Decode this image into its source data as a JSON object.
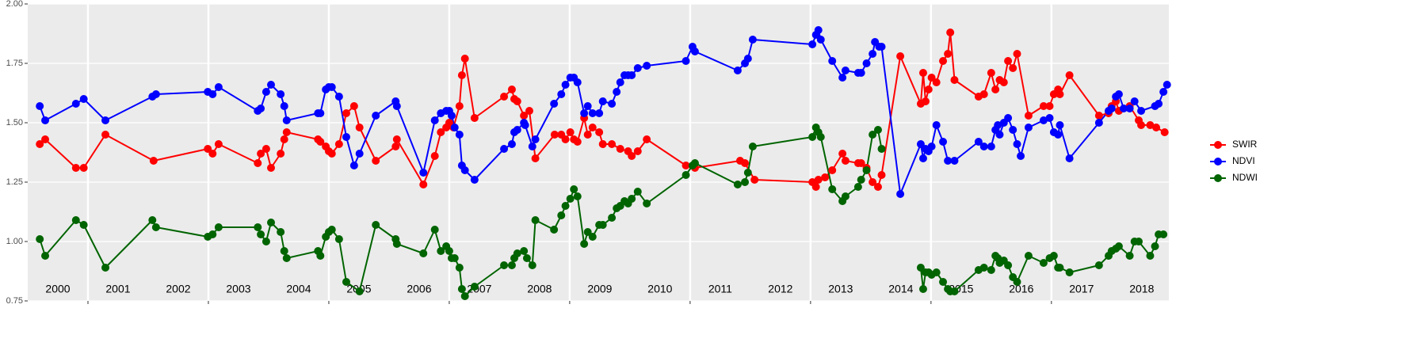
{
  "chart_data": {
    "type": "line",
    "xlim": [
      2000,
      2018.95
    ],
    "xticks": [
      2001,
      2003,
      2005,
      2007,
      2009,
      2011,
      2013,
      2015,
      2017
    ],
    "ylim": [
      0.75,
      2.0
    ],
    "yticks": [
      0.75,
      {
        "value": 1.0,
        "label": "1.00"
      },
      1.25,
      {
        "value": 1.5,
        "label": "1.50"
      },
      1.75,
      {
        "value": 2.0,
        "label": "2.00"
      }
    ],
    "year_labels": [
      2000,
      2001,
      2002,
      2003,
      2004,
      2005,
      2006,
      2007,
      2008,
      2009,
      2010,
      2011,
      2012,
      2013,
      2014,
      2015,
      2016,
      2017,
      2018
    ],
    "grid": true,
    "legend": "right",
    "series": [
      {
        "name": "SWIR",
        "color": "#ff0000",
        "x": [
          2000.2,
          2000.29,
          2000.8,
          2000.93,
          2001.29,
          2002.09,
          2002.99,
          2003.07,
          2003.17,
          2003.82,
          2003.87,
          2003.96,
          2004.04,
          2004.2,
          2004.26,
          2004.3,
          2004.82,
          2004.86,
          2004.95,
          2005.0,
          2005.05,
          2005.17,
          2005.29,
          2005.42,
          2005.51,
          2005.78,
          2006.11,
          2006.13,
          2006.57,
          2006.76,
          2006.86,
          2006.95,
          2007.0,
          2007.07,
          2007.17,
          2007.21,
          2007.26,
          2007.42,
          2007.91,
          2008.04,
          2008.08,
          2008.13,
          2008.24,
          2008.33,
          2008.43,
          2008.75,
          2008.86,
          2008.93,
          2009.01,
          2009.07,
          2009.13,
          2009.24,
          2009.3,
          2009.38,
          2009.49,
          2009.55,
          2009.7,
          2009.84,
          2009.97,
          2010.03,
          2010.13,
          2010.28,
          2010.93,
          2011.08,
          2011.83,
          2011.91,
          2012.07,
          2013.03,
          2013.09,
          2013.13,
          2013.24,
          2013.36,
          2013.53,
          2013.58,
          2013.79,
          2013.84,
          2013.93,
          2014.03,
          2014.12,
          2014.18,
          2014.49,
          2014.83,
          2014.87,
          2014.91,
          2014.96,
          2015.01,
          2015.09,
          2015.2,
          2015.28,
          2015.32,
          2015.39,
          2015.79,
          2015.88,
          2016.0,
          2016.07,
          2016.14,
          2016.21,
          2016.28,
          2016.36,
          2016.43,
          2016.62,
          2016.87,
          2016.97,
          2017.04,
          2017.11,
          2017.14,
          2017.3,
          2017.79,
          2017.95,
          2018.0,
          2018.07,
          2018.12,
          2018.3,
          2018.45,
          2018.49,
          2018.64,
          2018.74,
          2018.88
        ],
        "values": [
          1.41,
          1.43,
          1.31,
          1.31,
          1.45,
          1.34,
          1.39,
          1.37,
          1.41,
          1.33,
          1.37,
          1.39,
          1.31,
          1.37,
          1.43,
          1.46,
          1.43,
          1.42,
          1.4,
          1.38,
          1.37,
          1.41,
          1.54,
          1.57,
          1.48,
          1.34,
          1.4,
          1.43,
          1.24,
          1.36,
          1.46,
          1.48,
          1.5,
          1.48,
          1.57,
          1.7,
          1.77,
          1.52,
          1.61,
          1.64,
          1.6,
          1.59,
          1.53,
          1.55,
          1.35,
          1.45,
          1.45,
          1.43,
          1.46,
          1.43,
          1.42,
          1.52,
          1.45,
          1.48,
          1.46,
          1.41,
          1.41,
          1.39,
          1.38,
          1.36,
          1.38,
          1.43,
          1.32,
          1.31,
          1.34,
          1.33,
          1.26,
          1.25,
          1.23,
          1.26,
          1.27,
          1.3,
          1.37,
          1.34,
          1.33,
          1.33,
          1.31,
          1.25,
          1.23,
          1.28,
          1.78,
          1.58,
          1.71,
          1.59,
          1.64,
          1.69,
          1.67,
          1.76,
          1.79,
          1.88,
          1.68,
          1.61,
          1.62,
          1.71,
          1.64,
          1.68,
          1.67,
          1.76,
          1.73,
          1.79,
          1.53,
          1.57,
          1.57,
          1.62,
          1.64,
          1.62,
          1.7,
          1.53,
          1.54,
          1.57,
          1.59,
          1.55,
          1.57,
          1.51,
          1.49,
          1.49,
          1.48,
          1.46
        ]
      },
      {
        "name": "NDVI",
        "color": "#0000ff",
        "x": [
          2000.2,
          2000.29,
          2000.8,
          2000.93,
          2001.29,
          2002.07,
          2002.13,
          2002.99,
          2003.07,
          2003.17,
          2003.82,
          2003.87,
          2003.96,
          2004.04,
          2004.2,
          2004.26,
          2004.3,
          2004.82,
          2004.86,
          2004.95,
          2005.0,
          2005.05,
          2005.17,
          2005.29,
          2005.42,
          2005.51,
          2005.78,
          2006.11,
          2006.13,
          2006.57,
          2006.76,
          2006.86,
          2006.95,
          2007.0,
          2007.04,
          2007.09,
          2007.17,
          2007.21,
          2007.26,
          2007.42,
          2007.91,
          2008.04,
          2008.08,
          2008.13,
          2008.24,
          2008.26,
          2008.38,
          2008.43,
          2008.74,
          2008.86,
          2008.93,
          2009.01,
          2009.07,
          2009.13,
          2009.24,
          2009.3,
          2009.38,
          2009.49,
          2009.55,
          2009.7,
          2009.78,
          2009.84,
          2009.91,
          2009.97,
          2010.03,
          2010.13,
          2010.28,
          2010.93,
          2011.04,
          2011.08,
          2011.79,
          2011.91,
          2011.96,
          2012.04,
          2013.03,
          2013.09,
          2013.13,
          2013.17,
          2013.36,
          2013.53,
          2013.58,
          2013.79,
          2013.84,
          2013.93,
          2014.03,
          2014.07,
          2014.14,
          2014.18,
          2014.49,
          2014.83,
          2014.87,
          2014.91,
          2014.96,
          2015.01,
          2015.09,
          2015.2,
          2015.28,
          2015.39,
          2015.79,
          2015.88,
          2016.0,
          2016.07,
          2016.11,
          2016.14,
          2016.21,
          2016.28,
          2016.36,
          2016.43,
          2016.49,
          2016.62,
          2016.87,
          2016.97,
          2017.04,
          2017.11,
          2017.14,
          2017.3,
          2017.79,
          2017.95,
          2018.0,
          2018.07,
          2018.12,
          2018.2,
          2018.3,
          2018.38,
          2018.49,
          2018.72,
          2018.78,
          2018.86,
          2018.92
        ],
        "values": [
          1.57,
          1.51,
          1.58,
          1.6,
          1.51,
          1.61,
          1.62,
          1.63,
          1.62,
          1.65,
          1.55,
          1.56,
          1.63,
          1.66,
          1.62,
          1.57,
          1.51,
          1.54,
          1.54,
          1.64,
          1.65,
          1.65,
          1.61,
          1.44,
          1.32,
          1.37,
          1.53,
          1.59,
          1.57,
          1.29,
          1.51,
          1.54,
          1.55,
          1.55,
          1.53,
          1.48,
          1.45,
          1.32,
          1.3,
          1.26,
          1.39,
          1.41,
          1.46,
          1.47,
          1.5,
          1.49,
          1.4,
          1.43,
          1.58,
          1.62,
          1.66,
          1.69,
          1.69,
          1.67,
          1.54,
          1.57,
          1.54,
          1.54,
          1.59,
          1.58,
          1.63,
          1.67,
          1.7,
          1.7,
          1.7,
          1.73,
          1.74,
          1.76,
          1.82,
          1.8,
          1.72,
          1.75,
          1.77,
          1.85,
          1.83,
          1.87,
          1.89,
          1.85,
          1.76,
          1.69,
          1.72,
          1.71,
          1.71,
          1.75,
          1.79,
          1.84,
          1.82,
          1.82,
          1.2,
          1.41,
          1.35,
          1.39,
          1.38,
          1.4,
          1.49,
          1.42,
          1.34,
          1.34,
          1.42,
          1.4,
          1.4,
          1.47,
          1.49,
          1.45,
          1.5,
          1.52,
          1.47,
          1.41,
          1.36,
          1.48,
          1.51,
          1.52,
          1.46,
          1.45,
          1.49,
          1.35,
          1.5,
          1.55,
          1.56,
          1.61,
          1.62,
          1.56,
          1.56,
          1.59,
          1.55,
          1.57,
          1.58,
          1.63,
          1.66
        ]
      },
      {
        "name": "NDWI",
        "color": "#006400",
        "x": [
          2000.2,
          2000.29,
          2000.8,
          2000.93,
          2001.29,
          2002.07,
          2002.13,
          2002.99,
          2003.07,
          2003.17,
          2003.82,
          2003.87,
          2003.96,
          2004.04,
          2004.2,
          2004.26,
          2004.3,
          2004.82,
          2004.86,
          2004.95,
          2005.0,
          2005.05,
          2005.17,
          2005.29,
          2005.51,
          2005.78,
          2006.11,
          2006.13,
          2006.57,
          2006.76,
          2006.86,
          2006.95,
          2007.0,
          2007.04,
          2007.09,
          2007.17,
          2007.21,
          2007.26,
          2007.42,
          2007.91,
          2008.04,
          2008.08,
          2008.13,
          2008.24,
          2008.29,
          2008.38,
          2008.43,
          2008.74,
          2008.86,
          2008.93,
          2009.01,
          2009.07,
          2009.13,
          2009.24,
          2009.3,
          2009.38,
          2009.49,
          2009.55,
          2009.7,
          2009.78,
          2009.84,
          2009.91,
          2009.97,
          2010.03,
          2010.13,
          2010.28,
          2010.93,
          2011.04,
          2011.08,
          2011.79,
          2011.91,
          2011.96,
          2012.04,
          2013.03,
          2013.09,
          2013.13,
          2013.17,
          2013.36,
          2013.53,
          2013.58,
          2013.79,
          2013.84,
          2013.93,
          2014.03,
          2014.12,
          2014.18,
          2014.49,
          2014.83,
          2014.87,
          2014.91,
          2014.96,
          2015.01,
          2015.09,
          2015.2,
          2015.28,
          2015.32,
          2015.39,
          2015.79,
          2015.88,
          2016.0,
          2016.07,
          2016.11,
          2016.14,
          2016.21,
          2016.28,
          2016.36,
          2016.43,
          2016.62,
          2016.87,
          2016.97,
          2017.04,
          2017.11,
          2017.14,
          2017.3,
          2017.79,
          2017.95,
          2018.0,
          2018.07,
          2018.12,
          2018.3,
          2018.38,
          2018.45,
          2018.64,
          2018.72,
          2018.78,
          2018.86
        ],
        "values": [
          1.01,
          0.94,
          1.09,
          1.07,
          0.89,
          1.09,
          1.06,
          1.02,
          1.03,
          1.06,
          1.06,
          1.03,
          1.0,
          1.08,
          1.04,
          0.96,
          0.93,
          0.96,
          0.94,
          1.02,
          1.04,
          1.05,
          1.01,
          0.83,
          0.79,
          1.07,
          1.01,
          0.99,
          0.95,
          1.05,
          0.96,
          0.98,
          0.96,
          0.93,
          0.93,
          0.89,
          0.8,
          0.77,
          0.81,
          0.9,
          0.9,
          0.93,
          0.95,
          0.96,
          0.93,
          0.9,
          1.09,
          1.05,
          1.11,
          1.15,
          1.18,
          1.22,
          1.19,
          0.99,
          1.04,
          1.02,
          1.07,
          1.07,
          1.1,
          1.14,
          1.15,
          1.17,
          1.16,
          1.18,
          1.21,
          1.16,
          1.28,
          1.32,
          1.33,
          1.24,
          1.25,
          1.29,
          1.4,
          1.44,
          1.48,
          1.46,
          1.44,
          1.22,
          1.17,
          1.19,
          1.23,
          1.26,
          1.3,
          1.45,
          1.47,
          1.39,
          null,
          0.89,
          0.8,
          0.87,
          0.87,
          0.86,
          0.87,
          0.83,
          0.8,
          0.79,
          0.79,
          0.88,
          0.89,
          0.88,
          0.94,
          0.93,
          0.91,
          0.92,
          0.9,
          0.85,
          0.83,
          0.94,
          0.91,
          0.93,
          0.94,
          0.89,
          0.89,
          0.87,
          0.9,
          0.94,
          0.96,
          0.97,
          0.98,
          0.94,
          1.0,
          1.0,
          0.94,
          0.98,
          1.03,
          1.03
        ]
      }
    ]
  }
}
